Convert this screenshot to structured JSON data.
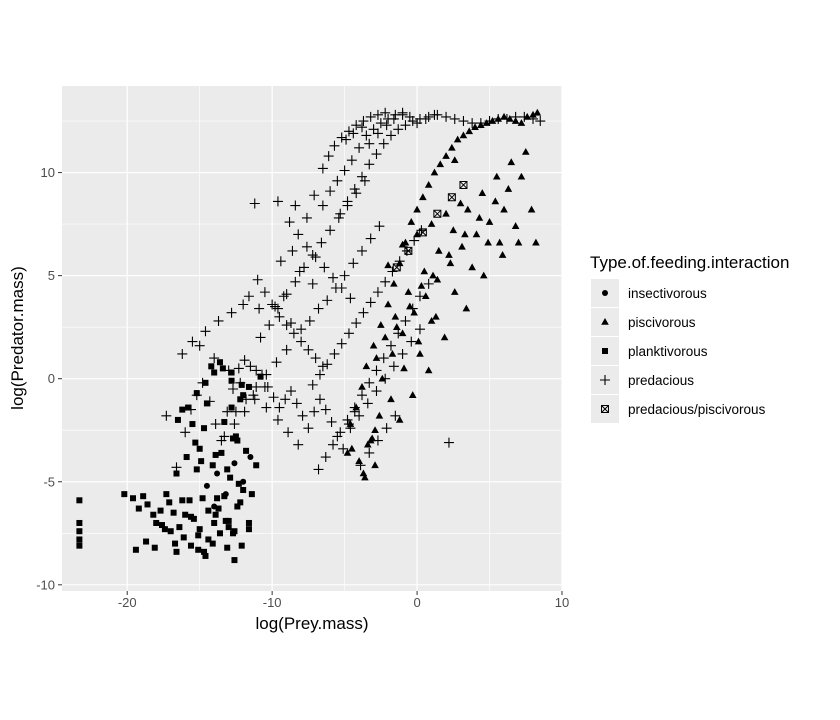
{
  "chart_data": {
    "type": "scatter",
    "xlabel": "log(Prey.mass)",
    "ylabel": "log(Predator.mass)",
    "xlim": [
      -24.5,
      10
    ],
    "ylim": [
      -10.3,
      14.2
    ],
    "x_ticks": [
      -20,
      -10,
      0,
      10
    ],
    "y_ticks": [
      -10,
      -5,
      0,
      5,
      10
    ],
    "grid": true,
    "legend": {
      "title": "Type.of.feeding.interaction",
      "placement": "right",
      "entries": [
        {
          "label": "insectivorous",
          "shape": "circle"
        },
        {
          "label": "piscivorous",
          "shape": "triangle"
        },
        {
          "label": "planktivorous",
          "shape": "square"
        },
        {
          "label": "predacious",
          "shape": "plus"
        },
        {
          "label": "predacious/piscivorous",
          "shape": "square-x"
        }
      ]
    },
    "colors": {
      "panel": "#ebebeb",
      "grid": "#ffffff",
      "points": "#000000"
    },
    "series": [
      {
        "name": "insectivorous",
        "shape": "circle",
        "x": [
          -14.5,
          -13.8,
          -13.2,
          -12.6,
          -12.0,
          -14.0,
          -11.5
        ],
        "y": [
          -5.2,
          -4.6,
          -5.6,
          -4.1,
          -5.0,
          -6.2,
          -3.8
        ]
      },
      {
        "name": "piscivorous",
        "shape": "triangle",
        "x": [
          -4.6,
          -4.2,
          -3.8,
          -3.5,
          -3.0,
          -2.5,
          -2.0,
          -1.6,
          -1.2,
          -0.8,
          -0.4,
          0.0,
          0.4,
          0.8,
          1.2,
          1.6,
          2.0,
          2.4,
          2.8,
          3.2,
          3.6,
          4.0,
          4.4,
          4.8,
          5.2,
          5.6,
          6.0,
          6.4,
          6.8,
          7.2,
          7.6,
          8.0,
          8.3,
          -1.5,
          -0.6,
          0.5,
          1.5,
          2.5,
          3.5,
          4.5,
          5.5,
          6.5,
          7.5,
          -2.0,
          -1.0,
          0.0,
          1.0,
          2.0,
          3.0,
          -2.8,
          -2.2,
          -1.4,
          -0.5,
          0.3,
          1.1,
          2.2,
          3.3,
          4.3,
          5.4,
          6.3,
          7.2,
          -3.2,
          -2.4,
          -1.7,
          -1.0,
          -0.2,
          0.6,
          1.4,
          2.3,
          3.1,
          4.1,
          5.0,
          6.0,
          -1.8,
          -0.9,
          0.1,
          1.3,
          2.6,
          3.8,
          4.9,
          -4.0,
          -3.4,
          -2.9,
          -3.7,
          -4.8,
          -2.6,
          -3.1,
          5.7,
          6.8,
          7.9,
          8.2,
          -1.2,
          -0.3,
          0.8,
          1.9,
          3.4,
          4.6,
          5.9,
          7.0,
          2.6,
          -2.9,
          -4.5,
          -3.6,
          0.2,
          1.0
        ],
        "y": [
          -2.2,
          -1.4,
          -0.4,
          0.6,
          1.6,
          2.6,
          3.6,
          4.6,
          5.6,
          6.6,
          7.6,
          8.2,
          8.8,
          9.4,
          10.0,
          10.4,
          10.8,
          11.2,
          11.6,
          11.8,
          12.0,
          12.2,
          12.3,
          12.4,
          12.5,
          12.6,
          12.7,
          12.6,
          12.5,
          12.4,
          12.7,
          12.8,
          12.9,
          3.0,
          4.2,
          5.2,
          6.2,
          7.2,
          8.2,
          9.0,
          9.8,
          10.5,
          11.0,
          5.5,
          6.5,
          7.0,
          7.5,
          8.0,
          8.5,
          1.0,
          2.0,
          2.5,
          3.5,
          4.5,
          5.0,
          6.0,
          7.0,
          7.8,
          8.6,
          9.2,
          9.8,
          -3.0,
          0.0,
          1.2,
          2.2,
          3.2,
          4.0,
          4.8,
          5.6,
          6.4,
          7.0,
          7.6,
          8.2,
          -1.0,
          0.5,
          1.8,
          3.0,
          4.2,
          5.4,
          6.6,
          -4.0,
          -3.2,
          -2.5,
          -4.6,
          -3.6,
          -1.8,
          -2.9,
          6.6,
          7.4,
          8.2,
          6.6,
          -2.0,
          -0.8,
          0.4,
          2.0,
          3.4,
          5.0,
          6.0,
          6.6,
          10.6,
          -4.2,
          -3.4,
          -4.8,
          1.2,
          2.8
        ]
      },
      {
        "name": "planktivorous",
        "shape": "square",
        "x": [
          -23.3,
          -23.3,
          -23.3,
          -23.3,
          -23.3,
          -20.2,
          -19.6,
          -19.2,
          -18.9,
          -18.6,
          -18.2,
          -18.0,
          -17.7,
          -17.3,
          -17.0,
          -16.7,
          -16.4,
          -16.0,
          -15.7,
          -15.4,
          -15.1,
          -14.7,
          -14.4,
          -14.0,
          -13.7,
          -13.3,
          -13.0,
          -12.7,
          -12.4,
          -12.0,
          -11.6,
          -19.4,
          -18.7,
          -18.1,
          -17.6,
          -17.1,
          -16.6,
          -16.1,
          -15.6,
          -15.1,
          -14.6,
          -14.1,
          -13.6,
          -13.1,
          -12.6,
          -12.1,
          -11.6,
          -17.4,
          -16.8,
          -16.2,
          -15.6,
          -15.0,
          -14.4,
          -13.8,
          -13.2,
          -12.6,
          -15.9,
          -15.3,
          -14.7,
          -14.1,
          -13.5,
          -12.9,
          -12.3,
          -16.5,
          -15.8,
          -15.2,
          -14.6,
          -14.0,
          -13.4,
          -12.8,
          -12.2,
          -13.6,
          -12.8,
          -12.1,
          -14.5,
          -13.3,
          -12.5,
          -11.8,
          -11.1,
          -15.0,
          -12.8,
          -12.0,
          -14.8,
          -13.9,
          -13.0,
          -12.2,
          -16.2,
          -15.5,
          -14.9,
          -11.4,
          -13.1,
          -12.4,
          -14.2,
          -11.6,
          -10.8,
          -16.6,
          -15.2,
          -13.9,
          -12.7
        ],
        "y": [
          -5.9,
          -7.0,
          -7.4,
          -7.8,
          -8.1,
          -5.6,
          -5.8,
          -6.3,
          -5.7,
          -6.1,
          -6.6,
          -7.0,
          -6.4,
          -5.6,
          -7.4,
          -8.0,
          -7.2,
          -6.6,
          -5.9,
          -6.8,
          -7.6,
          -8.4,
          -7.8,
          -7.0,
          -6.3,
          -5.7,
          -6.9,
          -7.5,
          -6.2,
          -5.4,
          -7.3,
          -8.3,
          -7.9,
          -8.2,
          -7.1,
          -6.0,
          -8.4,
          -7.7,
          -8.1,
          -8.3,
          -8.6,
          -8.0,
          -7.5,
          -8.2,
          -8.8,
          -8.1,
          -7.0,
          -7.3,
          -6.5,
          -5.9,
          -6.7,
          -7.3,
          -6.4,
          -5.8,
          -6.9,
          -7.4,
          -3.8,
          -3.1,
          -2.4,
          -4.2,
          -3.6,
          -4.8,
          -5.1,
          -2.0,
          -1.4,
          -0.7,
          -0.2,
          0.3,
          0.5,
          -0.1,
          -1.0,
          0.8,
          0.3,
          -0.3,
          -1.2,
          -2.1,
          -2.8,
          -3.5,
          -4.2,
          -3.4,
          -1.4,
          -0.8,
          -5.8,
          -6.6,
          -7.2,
          -6.0,
          -1.5,
          -2.2,
          -4.0,
          -5.6,
          -4.4,
          -3.0,
          0.6,
          -0.4,
          0.1,
          -4.6,
          -4.4,
          -3.7,
          -2.9
        ]
      },
      {
        "name": "predacious",
        "shape": "plus",
        "x": [
          -17.3,
          -16.6,
          -16.0,
          -15.6,
          -15.2,
          -14.8,
          -14.3,
          -13.9,
          -13.5,
          -13.1,
          -12.7,
          -12.3,
          -11.9,
          -11.5,
          -11.1,
          -10.7,
          -10.3,
          -9.9,
          -9.5,
          -9.1,
          -8.7,
          -8.3,
          -7.9,
          -7.5,
          -7.1,
          -6.7,
          -6.3,
          -5.9,
          -5.5,
          -5.1,
          -4.7,
          -4.3,
          -11.2,
          -9.6,
          -8.4,
          -7.6,
          -7.1,
          -6.5,
          -6.0,
          -5.5,
          -5.0,
          -4.5,
          -4.0,
          -3.5,
          -3.0,
          -2.5,
          -2.0,
          -1.5,
          -1.0,
          -0.5,
          0.0,
          0.6,
          1.2,
          -4.9,
          -4.4,
          -3.8,
          -3.3,
          -2.7,
          -2.1,
          -1.6,
          -1.0,
          -8.8,
          -8.2,
          -7.6,
          -7.0,
          -6.4,
          -5.8,
          -5.2,
          -4.6,
          -11.0,
          -10.5,
          -10.0,
          -9.5,
          -9.0,
          -8.5,
          -8.0,
          -7.5,
          -7.0,
          -6.5,
          -10.8,
          -10.2,
          -9.6,
          -9.0,
          -8.4,
          -7.8,
          -7.2,
          -6.6,
          -6.0,
          -5.4,
          -4.8,
          -4.2,
          -3.6,
          -8.0,
          -7.4,
          -6.8,
          -6.2,
          -5.6,
          -5.0,
          -4.4,
          -3.8,
          -3.2,
          -2.6,
          -6.8,
          -6.3,
          -5.8,
          -5.3,
          -4.8,
          -4.3,
          -3.8,
          -3.3,
          -2.8,
          -2.3,
          -1.8,
          -1.3,
          -0.8,
          -0.3,
          0.2,
          0.8,
          -7.2,
          -6.7,
          -6.2,
          -5.7,
          -5.2,
          -4.7,
          -4.2,
          -3.7,
          -3.2,
          -2.7,
          -2.2,
          -1.7,
          -1.2,
          -0.7,
          -0.2,
          0.3,
          -5.3,
          -4.8,
          -4.3,
          -3.8,
          -3.3,
          -2.8,
          -2.3,
          -1.8,
          -1.3,
          -0.8,
          -0.3,
          0.2,
          0.8,
          1.4,
          2.0,
          2.6,
          3.2,
          3.8,
          4.4,
          5.0,
          5.6,
          6.2,
          6.8,
          7.4,
          8.0,
          8.5,
          -4.6,
          -4.0,
          -3.4,
          -2.8,
          -2.2,
          -1.6,
          -1.0,
          -0.4,
          0.2,
          -3.9,
          -3.3,
          -2.7,
          -2.1,
          -1.5,
          2.2,
          -9.4,
          -8.6,
          -8.1,
          -7.2,
          -9.8,
          -9.2,
          -8.7,
          -11.6,
          -10.9,
          -12.0,
          -12.8,
          -13.7,
          -14.6,
          -15.5,
          -16.2,
          -15.0,
          -14.0,
          -13.0,
          -12.2,
          -11.3,
          -10.4,
          -9.6,
          -8.9,
          -8.2,
          -12.5,
          -11.8,
          -11.1,
          -10.4,
          -9.7,
          -9.0,
          -13.3,
          -12.6,
          -11.9,
          -11.2,
          -10.5,
          -6.5,
          -6.1,
          -5.7,
          -5.2,
          -4.7,
          -4.2,
          -3.7,
          -3.2,
          -2.7,
          -2.2
        ],
        "y": [
          -1.8,
          -4.3,
          -2.6,
          -1.5,
          -0.8,
          -0.2,
          -1.1,
          -2.2,
          -3.0,
          -1.6,
          -0.5,
          0.5,
          0.9,
          0.6,
          0.4,
          0.2,
          -0.4,
          -0.9,
          -1.4,
          -1.0,
          -0.6,
          -1.2,
          -1.8,
          -2.4,
          -1.6,
          -1.0,
          -1.5,
          -2.1,
          -2.8,
          -3.4,
          -2.2,
          -1.6,
          8.5,
          8.6,
          8.4,
          7.8,
          8.9,
          8.4,
          9.1,
          9.6,
          10.1,
          10.6,
          11.2,
          11.8,
          12.1,
          12.4,
          12.6,
          12.8,
          12.8,
          12.7,
          12.4,
          12.6,
          12.8,
          11.6,
          11.9,
          12.2,
          11.4,
          11.9,
          12.3,
          12.6,
          12.9,
          7.6,
          7.0,
          6.4,
          5.9,
          5.4,
          4.9,
          4.4,
          3.9,
          4.8,
          4.2,
          3.6,
          3.0,
          2.6,
          2.2,
          1.8,
          1.4,
          1.0,
          0.6,
          2.0,
          2.6,
          3.4,
          4.1,
          4.7,
          5.4,
          6.0,
          6.6,
          7.2,
          7.8,
          8.4,
          9.0,
          9.6,
          2.4,
          2.8,
          3.4,
          3.8,
          4.4,
          5.0,
          5.6,
          6.2,
          6.8,
          7.4,
          -4.4,
          -3.8,
          -3.2,
          -2.6,
          -2.0,
          -1.4,
          -0.8,
          -0.2,
          0.4,
          1.0,
          1.6,
          2.2,
          2.8,
          3.4,
          4.0,
          4.6,
          -0.3,
          0.2,
          0.7,
          1.2,
          1.7,
          2.2,
          2.7,
          3.2,
          3.7,
          4.2,
          4.7,
          5.2,
          5.7,
          6.2,
          6.7,
          7.2,
          8.0,
          8.6,
          9.2,
          9.8,
          10.4,
          10.9,
          11.4,
          11.8,
          12.1,
          12.3,
          12.5,
          12.6,
          12.7,
          12.8,
          12.7,
          12.6,
          12.5,
          12.4,
          12.4,
          12.5,
          12.6,
          12.6,
          12.7,
          12.7,
          12.6,
          12.5,
          -2.4,
          -1.8,
          -1.2,
          -0.6,
          0.0,
          0.6,
          1.2,
          1.8,
          2.4,
          -4.2,
          -3.6,
          -3.0,
          -2.4,
          -1.8,
          -3.1,
          5.7,
          6.2,
          5.2,
          4.6,
          3.5,
          4.0,
          2.7,
          4.0,
          3.4,
          3.6,
          3.2,
          2.8,
          2.3,
          1.8,
          1.2,
          1.6,
          1.0,
          0.4,
          -0.2,
          -0.8,
          -1.4,
          -2.0,
          -2.6,
          -3.2,
          -1.6,
          -1.0,
          -0.4,
          0.2,
          0.8,
          1.4,
          -2.8,
          -2.2,
          -1.6,
          -1.0,
          -0.4,
          10.2,
          10.8,
          11.3,
          11.7,
          12.0,
          12.3,
          12.5,
          12.7,
          12.8,
          12.9
        ]
      },
      {
        "name": "predacious/piscivorous",
        "shape": "square-x",
        "x": [
          -0.6,
          0.4,
          1.4,
          2.4,
          -1.4,
          3.2
        ],
        "y": [
          6.2,
          7.1,
          8.0,
          8.8,
          5.4,
          9.4
        ]
      }
    ]
  }
}
